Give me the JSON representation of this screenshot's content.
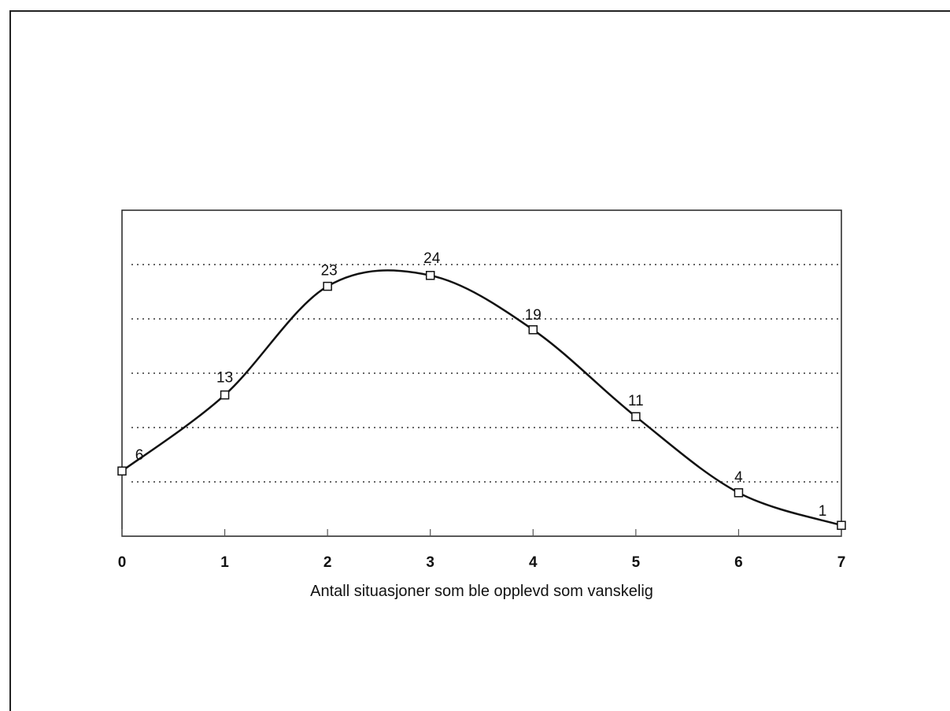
{
  "chart_data": {
    "type": "line",
    "title": "",
    "xlabel": "Antall situasjoner som ble opplevd som vanskelig",
    "ylabel": "",
    "x": [
      0,
      1,
      2,
      3,
      4,
      5,
      6,
      7
    ],
    "x_tick_labels": [
      "0",
      "1",
      "2",
      "3",
      "4",
      "5",
      "6",
      "7"
    ],
    "series": [
      {
        "values": [
          6,
          13,
          23,
          24,
          19,
          11,
          4,
          1
        ],
        "data_labels": [
          "6",
          "13",
          "23",
          "24",
          "19",
          "11",
          "4",
          "1"
        ],
        "marker": "square",
        "smooth": true
      }
    ],
    "xlim": [
      0,
      7
    ],
    "ylim": [
      0,
      30
    ],
    "grid": "horizontal dotted",
    "legend": "none"
  }
}
